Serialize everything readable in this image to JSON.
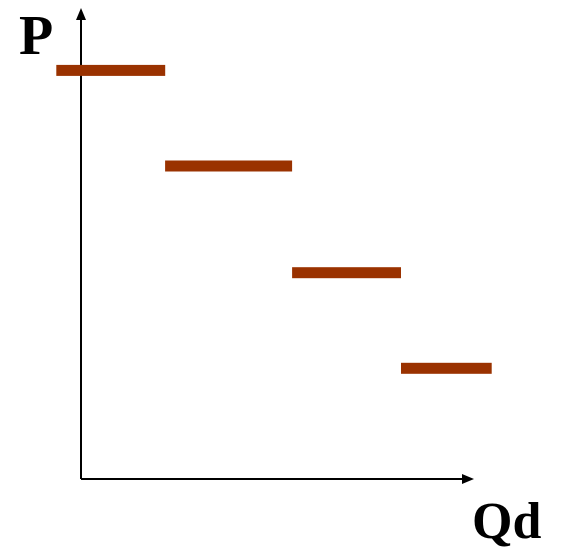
{
  "chart_data": {
    "type": "step",
    "title": "",
    "xlabel": "Qd",
    "ylabel": "P",
    "axis_ticks": false,
    "grid": false,
    "legend": "none",
    "segment_color": "#9A3200",
    "steps": [
      {
        "q_from": 0.0,
        "q_to": 3.0,
        "p": 10.0
      },
      {
        "q_from": 3.0,
        "q_to": 6.5,
        "p": 7.4
      },
      {
        "q_from": 6.5,
        "q_to": 9.5,
        "p": 4.5
      },
      {
        "q_from": 9.5,
        "q_to": 12.0,
        "p": 1.9
      }
    ],
    "xlim": [
      -1.0,
      13.0
    ],
    "ylim": [
      -1.9,
      11.1
    ]
  }
}
